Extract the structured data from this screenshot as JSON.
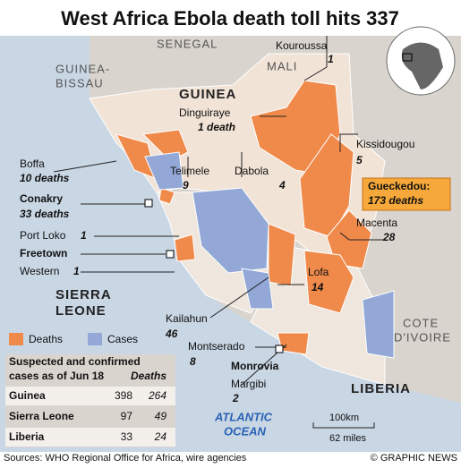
{
  "title": "West Africa Ebola death toll hits 337",
  "countries": {
    "senegal": "SENEGAL",
    "guinea_bissau": [
      "GUINEA-",
      "BISSAU"
    ],
    "mali": "MALI",
    "guinea": "GUINEA",
    "sierra_leone": [
      "SIERRA",
      "LEONE"
    ],
    "liberia": "LIBERIA",
    "cote_divoire": [
      "COTE",
      "D'IVOIRE"
    ]
  },
  "ocean": [
    "ATLANTIC",
    "OCEAN"
  ],
  "districts": [
    {
      "name": "Kouroussa",
      "figure": "1"
    },
    {
      "name": "Dinguiraye",
      "figure": "1 death"
    },
    {
      "name": "Kissidougou",
      "figure": "5"
    },
    {
      "name": "Gueckedou:",
      "figure": "173 deaths"
    },
    {
      "name": "Macenta",
      "figure": "28"
    },
    {
      "name": "Boffa",
      "figure": "10 deaths"
    },
    {
      "name": "Conakry",
      "figure": "33 deaths"
    },
    {
      "name": "Telimele",
      "figure": "9"
    },
    {
      "name": "Dabola",
      "figure": "4"
    },
    {
      "name": "Port Loko",
      "figure": "1"
    },
    {
      "name": "Freetown"
    },
    {
      "name": "Western",
      "figure": "1"
    },
    {
      "name": "Lofa",
      "figure": "14"
    },
    {
      "name": "Kailahun",
      "figure": "46"
    },
    {
      "name": "Montserado",
      "figure": "8"
    },
    {
      "name": "Monrovia"
    },
    {
      "name": "Margibi",
      "figure": "2"
    }
  ],
  "legend": [
    "Deaths",
    "Cases"
  ],
  "table": {
    "header": [
      "Suspected and confirmed",
      "cases as of Jun 18"
    ],
    "deaths_header": "Deaths",
    "rows": [
      [
        "Guinea",
        398,
        264
      ],
      [
        "Sierra Leone",
        97,
        49
      ],
      [
        "Liberia",
        33,
        24
      ]
    ]
  },
  "scale": [
    "100km",
    "62 miles"
  ],
  "source": "Sources: WHO Regional Office for Africa, wire agencies",
  "credit": "© GRAPHIC NEWS"
}
